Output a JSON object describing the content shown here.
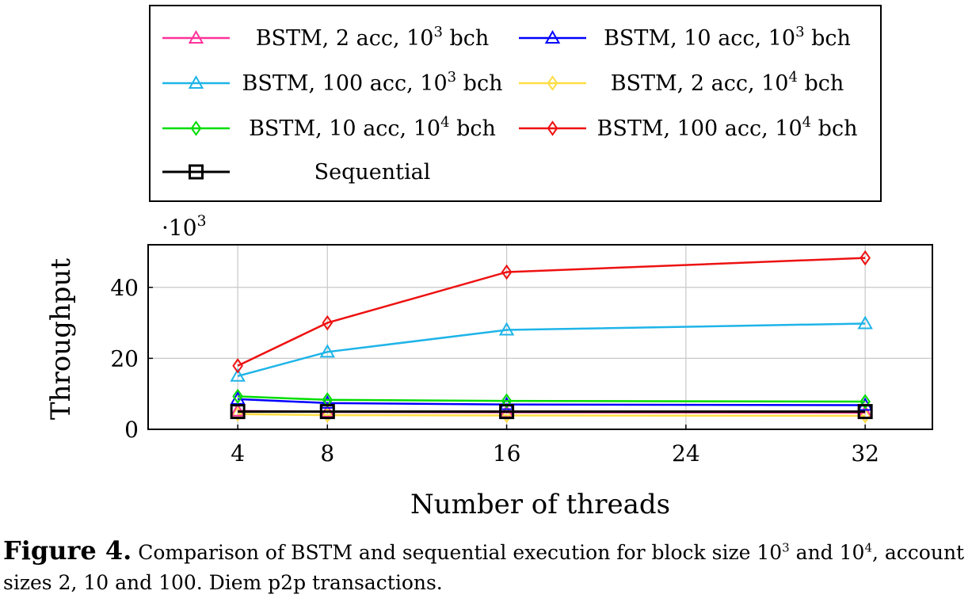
{
  "chart_data": {
    "type": "line",
    "xlabel": "Number of threads",
    "ylabel": "Throughput",
    "y_scale_label": "·10",
    "y_scale_exponent": "3",
    "x_ticks": [
      4,
      8,
      16,
      24,
      32
    ],
    "y_ticks": [
      0,
      20,
      40
    ],
    "xlim": [
      0,
      35
    ],
    "ylim": [
      0,
      52
    ],
    "grid": true,
    "legend_placement": "top, outside plot, 2 columns",
    "x": [
      4,
      8,
      16,
      32
    ],
    "series": [
      {
        "name": "BSTM, 2 acc, 10",
        "exp": "3",
        "suffix": " bch",
        "color": "#ff3399",
        "marker": "triangle",
        "values": [
          5.2,
          4.9,
          4.8,
          4.7
        ]
      },
      {
        "name": "BSTM, 10 acc, 10",
        "exp": "3",
        "suffix": " bch",
        "color": "#0000ff",
        "marker": "triangle",
        "values": [
          8.5,
          7.4,
          7.0,
          6.8
        ]
      },
      {
        "name": "BSTM, 100 acc, 10",
        "exp": "3",
        "suffix": " bch",
        "color": "#1eb4e8",
        "marker": "triangle",
        "values": [
          15.0,
          21.8,
          28.0,
          29.8
        ]
      },
      {
        "name": "BSTM, 2 acc, 10",
        "exp": "4",
        "suffix": " bch",
        "color": "#ffdd44",
        "marker": "diamond",
        "values": [
          4.3,
          4.0,
          3.9,
          3.8
        ]
      },
      {
        "name": "BSTM, 10 acc, 10",
        "exp": "4",
        "suffix": " bch",
        "color": "#00dd00",
        "marker": "diamond",
        "values": [
          9.3,
          8.3,
          8.0,
          7.8
        ]
      },
      {
        "name": "BSTM, 100 acc, 10",
        "exp": "4",
        "suffix": " bch",
        "color": "#ee1111",
        "marker": "diamond",
        "values": [
          17.9,
          30.0,
          44.3,
          48.3
        ]
      },
      {
        "name": "Sequential",
        "exp": "",
        "suffix": "",
        "color": "#000000",
        "marker": "square",
        "values": [
          5.0,
          5.0,
          5.0,
          5.0
        ]
      }
    ]
  },
  "caption": {
    "label": "Figure 4.",
    "text_1": " Comparison of BSTM and sequential execution for block size 10",
    "sup_1": "3",
    "text_2": " and 10",
    "sup_2": "4",
    "text_3": ", account sizes 2, 10 and 100. Diem p2p transactions."
  }
}
